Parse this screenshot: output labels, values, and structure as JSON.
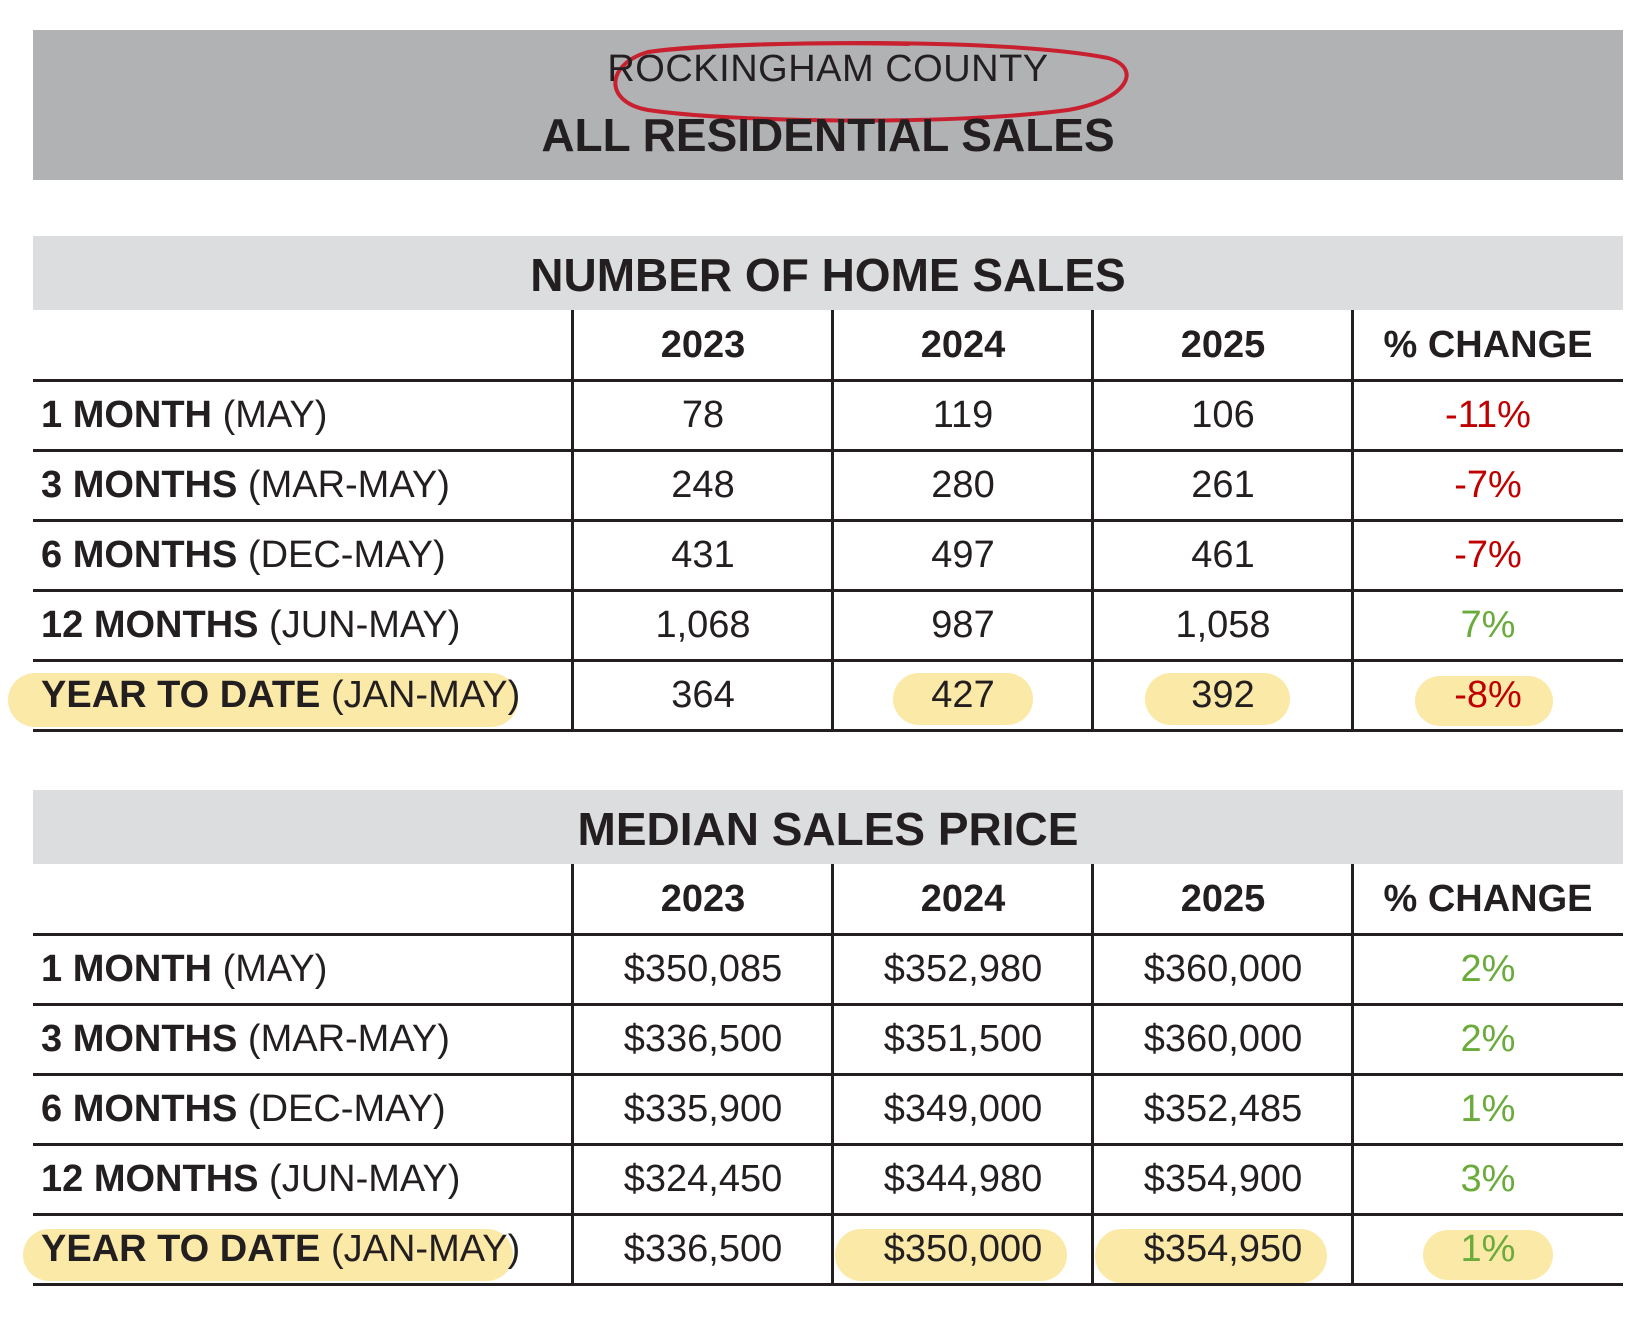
{
  "header": {
    "county": "ROCKINGHAM COUNTY",
    "title": "ALL RESIDENTIAL SALES"
  },
  "colors": {
    "header_band": "#b1b2b4",
    "section_band": "#dcddde",
    "negative": "#c00000",
    "positive": "#6aab3b",
    "highlight": "#fbe8a3",
    "circle": "#c8202f"
  },
  "sections": [
    {
      "title": "NUMBER OF HOME SALES",
      "columns": [
        "2023",
        "2024",
        "2025",
        "% CHANGE"
      ],
      "rows": [
        {
          "label_bold": "1 MONTH",
          "label_rest": "(MAY)",
          "values": [
            "78",
            "119",
            "106",
            "-11%"
          ],
          "change_sign": "negative"
        },
        {
          "label_bold": "3 MONTHS",
          "label_rest": "(MAR-MAY)",
          "values": [
            "248",
            "280",
            "261",
            "-7%"
          ],
          "change_sign": "negative"
        },
        {
          "label_bold": "6 MONTHS",
          "label_rest": "(DEC-MAY)",
          "values": [
            "431",
            "497",
            "461",
            "-7%"
          ],
          "change_sign": "negative"
        },
        {
          "label_bold": "12 MONTHS",
          "label_rest": "(JUN-MAY)",
          "values": [
            "1,068",
            "987",
            "1,058",
            "7%"
          ],
          "change_sign": "positive"
        },
        {
          "label_bold": "YEAR TO DATE",
          "label_rest": "(JAN-MAY)",
          "values": [
            "364",
            "427",
            "392",
            "-8%"
          ],
          "change_sign": "negative"
        }
      ]
    },
    {
      "title": "MEDIAN SALES PRICE",
      "columns": [
        "2023",
        "2024",
        "2025",
        "% CHANGE"
      ],
      "rows": [
        {
          "label_bold": "1 MONTH",
          "label_rest": "(MAY)",
          "values": [
            "$350,085",
            "$352,980",
            "$360,000",
            "2%"
          ],
          "change_sign": "positive"
        },
        {
          "label_bold": "3 MONTHS",
          "label_rest": "(MAR-MAY)",
          "values": [
            "$336,500",
            "$351,500",
            "$360,000",
            "2%"
          ],
          "change_sign": "positive"
        },
        {
          "label_bold": "6 MONTHS",
          "label_rest": "(DEC-MAY)",
          "values": [
            "$335,900",
            "$349,000",
            "$352,485",
            "1%"
          ],
          "change_sign": "positive"
        },
        {
          "label_bold": "12 MONTHS",
          "label_rest": "(JUN-MAY)",
          "values": [
            "$324,450",
            "$344,980",
            "$354,900",
            "3%"
          ],
          "change_sign": "positive"
        },
        {
          "label_bold": "YEAR TO DATE",
          "label_rest": "(JAN-MAY)",
          "values": [
            "$336,500",
            "$350,000",
            "$354,950",
            "1%"
          ],
          "change_sign": "positive"
        }
      ]
    }
  ]
}
